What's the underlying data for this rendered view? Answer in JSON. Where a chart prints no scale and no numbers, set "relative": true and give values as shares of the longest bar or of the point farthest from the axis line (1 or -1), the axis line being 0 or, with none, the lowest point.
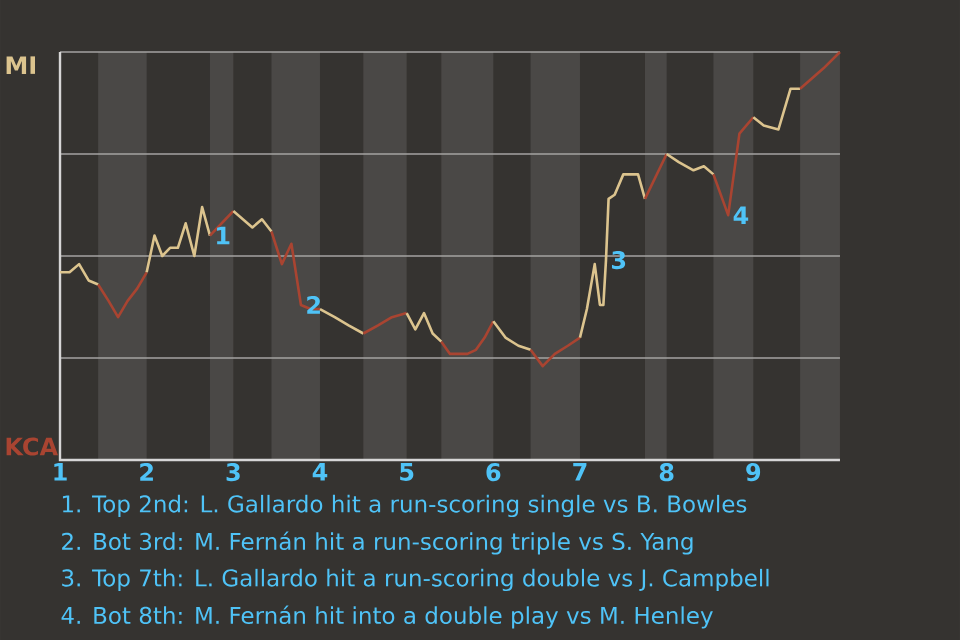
{
  "chart_data": {
    "type": "line",
    "relative": true,
    "xlim": [
      1,
      10
    ],
    "xticks": [
      1,
      2,
      3,
      4,
      5,
      6,
      7,
      8,
      9
    ],
    "grid": "y",
    "marker": "none",
    "series": [
      {
        "color": "#dcc48e",
        "x": [
          1,
          1.11,
          1.22,
          1.33,
          1.44
        ],
        "values": [
          0.46,
          0.46,
          0.48,
          0.44,
          0.43
        ]
      },
      {
        "color": "#a94431",
        "x": [
          1.44,
          1.56,
          1.67,
          1.78,
          1.89,
          2
        ],
        "values": [
          0.43,
          0.39,
          0.35,
          0.39,
          0.42,
          0.46
        ]
      },
      {
        "color": "#dcc48e",
        "x": [
          2,
          2.09,
          2.18,
          2.27,
          2.36,
          2.45,
          2.55,
          2.64,
          2.73
        ],
        "values": [
          0.46,
          0.55,
          0.5,
          0.52,
          0.52,
          0.58,
          0.5,
          0.62,
          0.55
        ]
      },
      {
        "color": "#a94431",
        "x": [
          2.73,
          2.82,
          2.91,
          3
        ],
        "values": [
          0.55,
          0.57,
          0.59,
          0.61
        ]
      },
      {
        "color": "#dcc48e",
        "x": [
          3,
          3.11,
          3.22,
          3.33,
          3.44
        ],
        "values": [
          0.61,
          0.59,
          0.57,
          0.59,
          0.56
        ]
      },
      {
        "color": "#a94431",
        "x": [
          3.44,
          3.56,
          3.67,
          3.78,
          3.89,
          4
        ],
        "values": [
          0.56,
          0.48,
          0.53,
          0.38,
          0.37,
          0.37
        ]
      },
      {
        "color": "#dcc48e",
        "x": [
          4,
          4.17,
          4.33,
          4.5
        ],
        "values": [
          0.37,
          0.35,
          0.33,
          0.31
        ]
      },
      {
        "color": "#a94431",
        "x": [
          4.5,
          4.67,
          4.83,
          5
        ],
        "values": [
          0.31,
          0.33,
          0.35,
          0.36
        ]
      },
      {
        "color": "#dcc48e",
        "x": [
          5,
          5.1,
          5.2,
          5.3,
          5.4
        ],
        "values": [
          0.36,
          0.32,
          0.36,
          0.31,
          0.29
        ]
      },
      {
        "color": "#a94431",
        "x": [
          5.4,
          5.5,
          5.6,
          5.7,
          5.8,
          5.9,
          6
        ],
        "values": [
          0.29,
          0.26,
          0.26,
          0.26,
          0.27,
          0.3,
          0.34
        ]
      },
      {
        "color": "#dcc48e",
        "x": [
          6,
          6.14,
          6.29,
          6.43
        ],
        "values": [
          0.34,
          0.3,
          0.28,
          0.27
        ]
      },
      {
        "color": "#a94431",
        "x": [
          6.43,
          6.57,
          6.71,
          6.86,
          7
        ],
        "values": [
          0.27,
          0.23,
          0.26,
          0.28,
          0.3
        ]
      },
      {
        "color": "#dcc48e",
        "x": [
          7,
          7.08,
          7.17,
          7.23,
          7.27,
          7.3,
          7.33,
          7.4,
          7.5,
          7.67,
          7.75
        ],
        "values": [
          0.3,
          0.37,
          0.48,
          0.38,
          0.38,
          0.49,
          0.64,
          0.65,
          0.7,
          0.7,
          0.64
        ]
      },
      {
        "color": "#a94431",
        "x": [
          7.75,
          8
        ],
        "values": [
          0.64,
          0.75
        ]
      },
      {
        "color": "#dcc48e",
        "x": [
          8,
          8.14,
          8.31,
          8.43,
          8.54
        ],
        "values": [
          0.75,
          0.73,
          0.71,
          0.72,
          0.7
        ]
      },
      {
        "color": "#a94431",
        "x": [
          8.54,
          8.71,
          8.84,
          9
        ],
        "values": [
          0.7,
          0.6,
          0.8,
          0.84
        ]
      },
      {
        "color": "#dcc48e",
        "x": [
          9,
          9.12,
          9.29,
          9.43,
          9.54
        ],
        "values": [
          0.84,
          0.82,
          0.81,
          0.91,
          0.91
        ]
      },
      {
        "color": "#a94431",
        "x": [
          9.54,
          9.81,
          10
        ],
        "values": [
          0.91,
          0.96,
          1.0
        ]
      }
    ],
    "bands": [
      {
        "axis": "x",
        "from": 1.44,
        "to": 2,
        "color": "#4a4846"
      },
      {
        "axis": "x",
        "from": 2.73,
        "to": 3,
        "color": "#4a4846"
      },
      {
        "axis": "x",
        "from": 3.44,
        "to": 4,
        "color": "#4a4846"
      },
      {
        "axis": "x",
        "from": 4.5,
        "to": 5,
        "color": "#4a4846"
      },
      {
        "axis": "x",
        "from": 5.4,
        "to": 6,
        "color": "#4a4846"
      },
      {
        "axis": "x",
        "from": 6.43,
        "to": 7,
        "color": "#4a4846"
      },
      {
        "axis": "x",
        "from": 7.75,
        "to": 8,
        "color": "#4a4846"
      },
      {
        "axis": "x",
        "from": 8.54,
        "to": 9,
        "color": "#4a4846"
      },
      {
        "axis": "x",
        "from": 9.54,
        "to": 10,
        "color": "#4a4846"
      }
    ],
    "annotations": [
      "MI",
      "KCA",
      {
        "text": "1",
        "x": 2.73,
        "y": 0.55
      },
      {
        "text": "2",
        "x": 3.78,
        "y": 0.38
      },
      {
        "text": "3",
        "x": 7.3,
        "y": 0.49
      },
      {
        "text": "4",
        "x": 8.71,
        "y": 0.6
      },
      "1. Top 2nd: L. Gallardo hit a run-scoring single vs B. Bowles",
      "2. Bot 3rd: M. Fernán hit a run-scoring triple vs S. Yang",
      "3. Top 7th: L. Gallardo hit a run-scoring double vs J. Campbell",
      "4. Bot 8th: M. Fernán hit into a double play vs M. Henley"
    ]
  }
}
